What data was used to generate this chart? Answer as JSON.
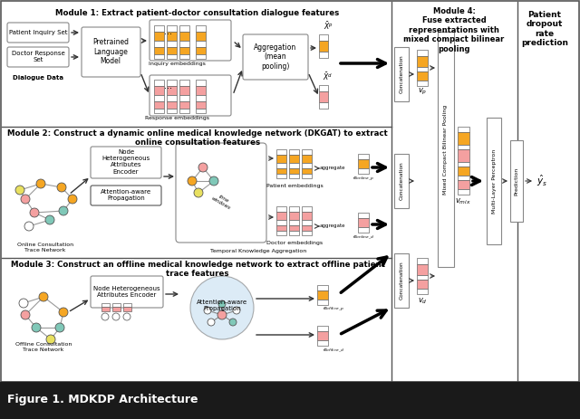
{
  "title": "Figure 1. MDKDP Architecture",
  "title_bg": "#1a1a1a",
  "color_orange": "#F5A623",
  "color_pink": "#F4A0A0",
  "color_light_blue": "#C5DFF0",
  "color_node_orange": "#F5A623",
  "color_node_pink": "#F4A0A0",
  "color_node_cyan": "#80C8B8",
  "color_node_yellow": "#E8E060",
  "color_node_white": "#FFFFFF",
  "color_node_gray": "#CCCCCC",
  "module1_title": "Module 1: Extract patient-doctor consultation dialogue features",
  "module2_title": "Module 2: Construct a dynamic online medical knowledge network (DKGAT) to extract\nonline consultation features",
  "module3_title": "Module 3: Construct an offline medical knowledge network to extract offline patient\ntrace features",
  "module4_title": "Module 4:\nFuse extracted\nrepresentations with\nmixed compact bilinear\npooling",
  "module5_title": "Patient\ndropout\nrate\nprediction"
}
